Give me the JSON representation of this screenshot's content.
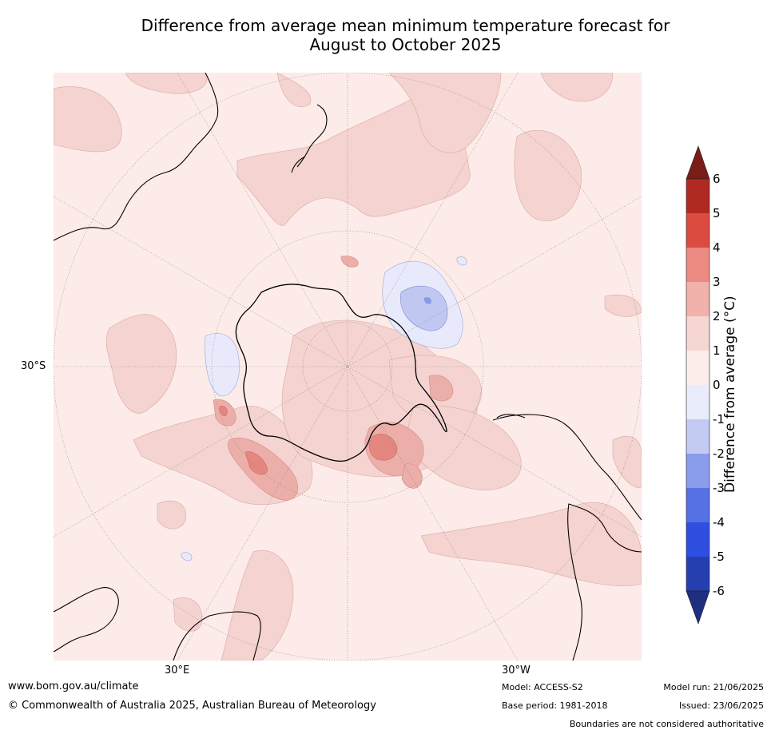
{
  "title_line1": "Difference from average mean minimum temperature forecast for",
  "title_line2": "August to October 2025",
  "map": {
    "projection": "south-polar-stereographic",
    "lat_label": "30°S",
    "lon_labels": [
      "30°E",
      "30°W"
    ],
    "colors": {
      "ocean_bg": "#fcebe8",
      "warm_1_2": "#f4d3d0",
      "warm_2_3": "#ecaea8",
      "warm_3_4": "#e5867f",
      "cool_0_m1": "#e8eafb",
      "cool_m1_m2": "#c0c8f2",
      "cool_m2_m3": "#8a99e8",
      "coast": "#000000",
      "graticule": "#888888"
    }
  },
  "colorbar": {
    "label": "Difference from average (°C)",
    "ticks": [
      "6",
      "5",
      "4",
      "3",
      "2",
      "1",
      "0",
      "-1",
      "-2",
      "-3",
      "-4",
      "-5",
      "-6"
    ],
    "colors_top_to_bottom": [
      "#7a1d17",
      "#b02a22",
      "#dc4b40",
      "#ea8a82",
      "#f0b2ab",
      "#f6d6d3",
      "#fcecea",
      "#e8ecfb",
      "#c3cbf3",
      "#8a9cec",
      "#5571e4",
      "#2f4fe0",
      "#253fb0",
      "#1e2f80"
    ]
  },
  "footer": {
    "site": "www.bom.gov.au/climate",
    "copyright": "© Commonwealth of Australia 2025, Australian Bureau of Meteorology",
    "model": "Model: ACCESS-S2",
    "base_period": "Base period: 1981-2018",
    "model_run": "Model run: 21/06/2025",
    "issued": "Issued: 23/06/2025",
    "disclaimer": "Boundaries are not considered authoritative"
  }
}
